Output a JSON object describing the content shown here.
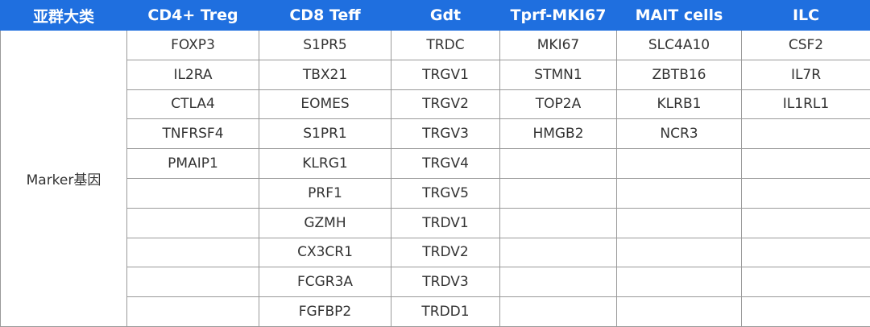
{
  "table": {
    "header": [
      "亚群大类",
      "CD4+ Treg",
      "CD8 Teff",
      "Gdt",
      "Tprf-MKI67",
      "MAIT cells",
      "ILC"
    ],
    "row_label": "Marker基因",
    "columns": [
      [
        "FOXP3",
        "IL2RA",
        "CTLA4",
        "TNFRSF4",
        "PMAIP1"
      ],
      [
        "S1PR5",
        "TBX21",
        "EOMES",
        "S1PR1",
        "KLRG1",
        "PRF1",
        "GZMH",
        "CX3CR1",
        "FCGR3A",
        "FGFBP2"
      ],
      [
        "TRDC",
        "TRGV1",
        "TRGV2",
        "TRGV3",
        "TRGV4",
        "TRGV5",
        "TRDV1",
        "TRDV2",
        "TRDV3",
        "TRDD1"
      ],
      [
        "MKI67",
        "STMN1",
        "TOP2A",
        "HMGB2"
      ],
      [
        "SLC4A10",
        "ZBTB16",
        "KLRB1",
        "NCR3"
      ],
      [
        "CSF2",
        "IL7R",
        "IL1RL1"
      ]
    ]
  }
}
